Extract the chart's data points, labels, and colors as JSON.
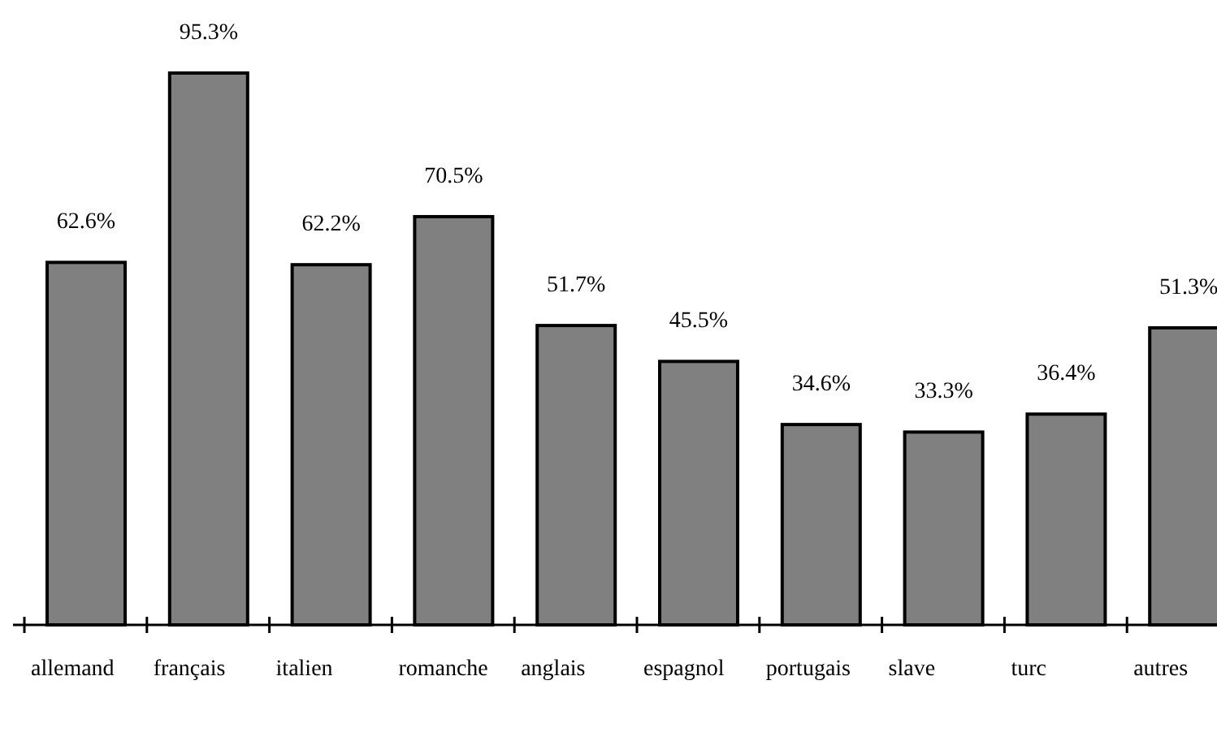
{
  "chart_data": {
    "type": "bar",
    "categories": [
      "allemand",
      "français",
      "italien",
      "romanche",
      "anglais",
      "espagnol",
      "portugais",
      "slave",
      "turc",
      "autres"
    ],
    "values": [
      62.6,
      95.3,
      62.2,
      70.5,
      51.7,
      45.5,
      34.6,
      33.3,
      36.4,
      51.3
    ],
    "value_labels": [
      "62.6%",
      "95.3%",
      "62.2%",
      "70.5%",
      "51.7%",
      "45.5%",
      "34.6%",
      "33.3%",
      "36.4%",
      "51.3%"
    ],
    "color": "#808080"
  }
}
